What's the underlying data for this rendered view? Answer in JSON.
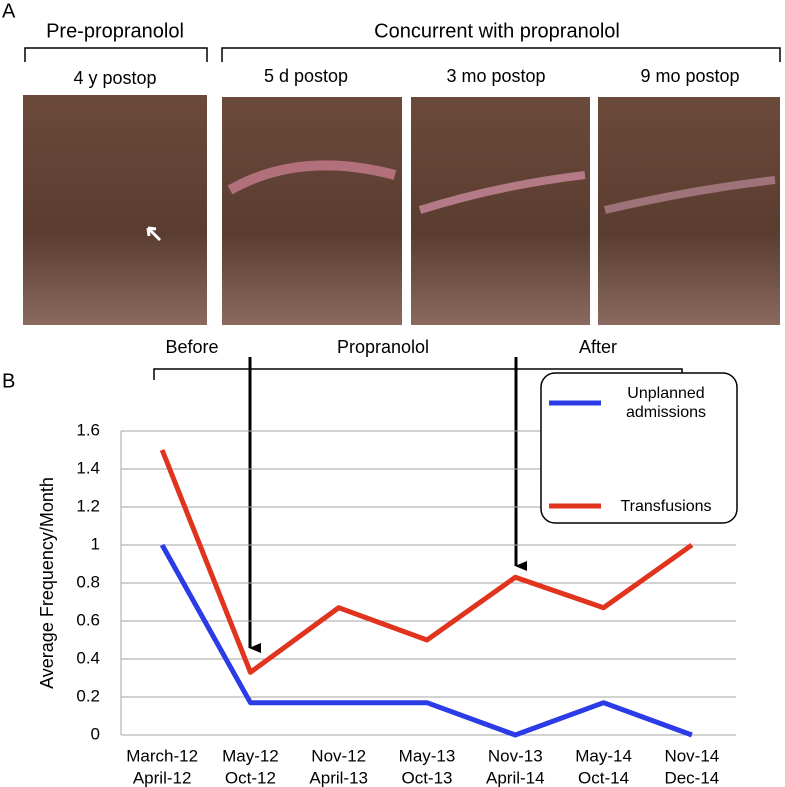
{
  "panel_a": {
    "letter": "A",
    "groups": [
      "Pre-propranolol",
      "Concurrent with propranolol"
    ],
    "photo_labels": [
      "4 y postop",
      "5 d postop",
      "3 mo postop",
      "9 mo postop"
    ]
  },
  "panel_b": {
    "letter": "B",
    "periods": [
      "Before",
      "Propranolol",
      "After"
    ]
  },
  "chart_data": {
    "type": "line",
    "y_label": "Average Frequency/Month",
    "categories": [
      [
        "March-12",
        "April-12"
      ],
      [
        "May-12",
        "Oct-12"
      ],
      [
        "Nov-12",
        "April-13"
      ],
      [
        "May-13",
        "Oct-13"
      ],
      [
        "Nov-13",
        "April-14"
      ],
      [
        "May-14",
        "Oct-14"
      ],
      [
        "Nov-14",
        "Dec-14"
      ]
    ],
    "series": [
      {
        "name": "Unplanned admissions",
        "color": "#2b3be6",
        "values": [
          1,
          0.17,
          0.17,
          0.17,
          0,
          0.17,
          0
        ]
      },
      {
        "name": "Transfusions",
        "color": "#e0341f",
        "values": [
          1.5,
          0.33,
          0.67,
          0.5,
          0.83,
          0.67,
          1
        ]
      }
    ],
    "ylim": [
      0,
      1.6
    ],
    "yticks": [
      0,
      0.2,
      0.4,
      0.6,
      0.8,
      1,
      1.2,
      1.4,
      1.6
    ],
    "grid": true,
    "legend": "upper right"
  }
}
